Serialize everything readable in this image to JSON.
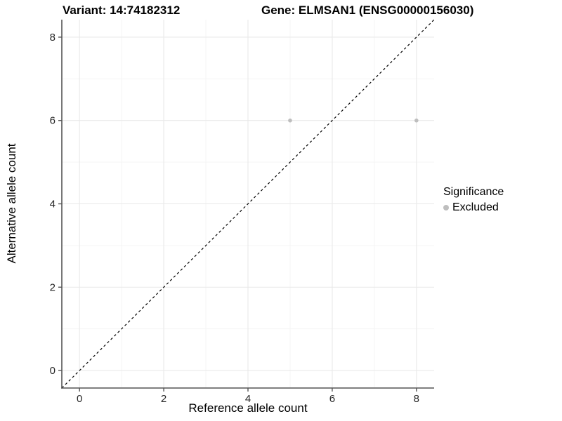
{
  "chart_data": {
    "type": "scatter",
    "title_left": "Variant: 14:74182312",
    "title_right": "Gene: ELMSAN1 (ENSG00000156030)",
    "xlabel": "Reference allele count",
    "ylabel": "Alternative allele count",
    "xlim": [
      -0.42,
      8.42
    ],
    "ylim": [
      -0.42,
      8.42
    ],
    "x_ticks": [
      0,
      2,
      4,
      6,
      8
    ],
    "y_ticks": [
      0,
      2,
      4,
      6,
      8
    ],
    "x_minor_ticks": [
      1,
      3,
      5,
      7
    ],
    "y_minor_ticks": [
      1,
      3,
      5,
      7
    ],
    "grid": true,
    "reference_line": {
      "type": "identity",
      "slope": 1,
      "intercept": 0,
      "style": "dashed",
      "color": "#000000"
    },
    "series": [
      {
        "name": "Excluded",
        "color": "#bebebe",
        "points": [
          {
            "x": 5,
            "y": 6
          },
          {
            "x": 8,
            "y": 6
          }
        ]
      }
    ],
    "legend": {
      "title": "Significance",
      "position": "right",
      "items": [
        {
          "label": "Excluded",
          "color": "#bebebe"
        }
      ]
    },
    "colors": {
      "panel_background": "#ffffff",
      "grid_major": "#e9e9e9",
      "grid_minor": "#f4f4f4",
      "axis_line": "#555555",
      "tick_mark": "#555555",
      "tick_label": "#262626",
      "title_text": "#000000"
    }
  }
}
